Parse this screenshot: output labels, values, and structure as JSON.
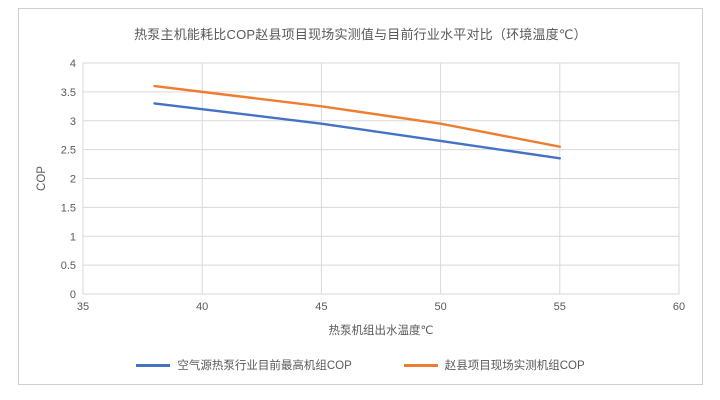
{
  "chart_data": {
    "type": "line",
    "title": "热泵主机能耗比COP赵县项目现场实测值与目前行业水平对比（环境温度℃）",
    "xlabel": "热泵机组出水温度℃",
    "ylabel": "COP",
    "x": [
      38,
      40,
      45,
      50,
      55
    ],
    "series": [
      {
        "name": "空气源热泵行业目前最高机组COP",
        "color": "#4472C4",
        "values": [
          3.3,
          3.2,
          2.95,
          2.65,
          2.35
        ]
      },
      {
        "name": "赵县项目现场实测机组COP",
        "color": "#ED7D31",
        "values": [
          3.6,
          3.5,
          3.25,
          2.95,
          2.55
        ]
      }
    ],
    "xlim": [
      35,
      60
    ],
    "ylim": [
      0,
      4
    ],
    "x_ticks": [
      35,
      40,
      45,
      50,
      55,
      60
    ],
    "y_ticks": [
      0,
      0.5,
      1,
      1.5,
      2,
      2.5,
      3,
      3.5,
      4
    ],
    "grid": true,
    "legend_position": "bottom",
    "colors": {
      "grid": "#D9D9D9",
      "plot_border": "#D9D9D9",
      "text": "#595959",
      "card_border": "#CFCFCF",
      "background": "#FFFFFF"
    }
  }
}
